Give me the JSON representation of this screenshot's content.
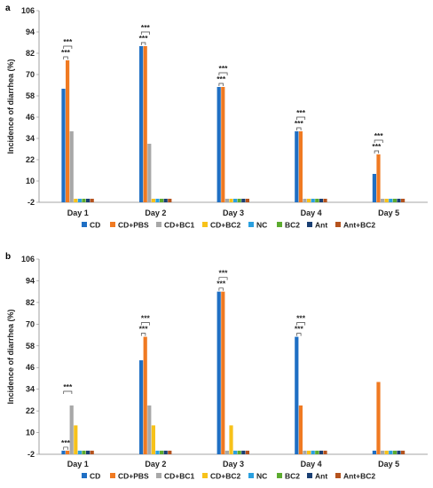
{
  "figure": {
    "background": "#ffffff"
  },
  "series_colors": {
    "CD": "#1f6fc4",
    "CD+PBS": "#f07a22",
    "CD+BC1": "#a8a8a8",
    "CD+BC2": "#f7c21a",
    "NC": "#2aa0e0",
    "BC2": "#5cab2f",
    "Ant": "#1a3f73",
    "Ant+BC2": "#b5531e"
  },
  "chart_data": [
    {
      "panel_label": "a",
      "type": "bar",
      "ylabel": "Incidence of diarrhea (%)",
      "ylim": [
        -2,
        106
      ],
      "yticks": [
        -2,
        10,
        22,
        34,
        46,
        58,
        70,
        82,
        94,
        106
      ],
      "categories": [
        "Day 1",
        "Day 2",
        "Day 3",
        "Day 4",
        "Day 5"
      ],
      "legend_position": "bottom",
      "series": [
        {
          "name": "CD",
          "values": [
            62,
            86,
            63,
            38,
            14
          ]
        },
        {
          "name": "CD+PBS",
          "values": [
            78,
            86,
            63,
            38,
            25
          ]
        },
        {
          "name": "CD+BC1",
          "values": [
            38,
            31,
            0,
            0,
            0
          ]
        },
        {
          "name": "CD+BC2",
          "values": [
            0,
            0,
            0,
            0,
            0
          ]
        },
        {
          "name": "NC",
          "values": [
            0,
            0,
            0,
            0,
            0
          ]
        },
        {
          "name": "BC2",
          "values": [
            0,
            0,
            0,
            0,
            0
          ]
        },
        {
          "name": "Ant",
          "values": [
            0,
            0,
            0,
            0,
            0
          ]
        },
        {
          "name": "Ant+BC2",
          "values": [
            0,
            0,
            0,
            0,
            0
          ]
        }
      ],
      "annotations": [
        {
          "text": "***",
          "category": "Day 1",
          "from": "CD",
          "to": "CD+PBS",
          "level": 1
        },
        {
          "text": "***",
          "category": "Day 1",
          "from": "CD",
          "to": "CD+BC1",
          "level": 2
        },
        {
          "text": "***",
          "category": "Day 2",
          "from": "CD",
          "to": "CD+PBS",
          "level": 1
        },
        {
          "text": "***",
          "category": "Day 2",
          "from": "CD",
          "to": "CD+BC1",
          "level": 2
        },
        {
          "text": "***",
          "category": "Day 3",
          "from": "CD",
          "to": "CD+PBS",
          "level": 1
        },
        {
          "text": "***",
          "category": "Day 3",
          "from": "CD",
          "to": "CD+BC1",
          "level": 2
        },
        {
          "text": "***",
          "category": "Day 4",
          "from": "CD",
          "to": "CD+PBS",
          "level": 1
        },
        {
          "text": "***",
          "category": "Day 4",
          "from": "CD",
          "to": "CD+BC1",
          "level": 2
        },
        {
          "text": "***",
          "category": "Day 5",
          "from": "CD",
          "to": "CD+PBS",
          "level": 1
        },
        {
          "text": "***",
          "category": "Day 5",
          "from": "CD",
          "to": "CD+BC1",
          "level": 2
        }
      ]
    },
    {
      "panel_label": "b",
      "type": "bar",
      "ylabel": "Incidence of diarrhea (%)",
      "ylim": [
        -2,
        106
      ],
      "yticks": [
        -2,
        10,
        22,
        34,
        46,
        58,
        70,
        82,
        94,
        106
      ],
      "categories": [
        "Day 1",
        "Day 2",
        "Day 3",
        "Day 4",
        "Day 5"
      ],
      "legend_position": "bottom",
      "series": [
        {
          "name": "CD",
          "values": [
            0,
            50,
            88,
            63,
            0
          ]
        },
        {
          "name": "CD+PBS",
          "values": [
            0,
            63,
            88,
            25,
            38
          ]
        },
        {
          "name": "CD+BC1",
          "values": [
            25,
            25,
            0,
            0,
            0
          ]
        },
        {
          "name": "CD+BC2",
          "values": [
            14,
            14,
            14,
            0,
            0
          ]
        },
        {
          "name": "NC",
          "values": [
            0,
            0,
            0,
            0,
            0
          ]
        },
        {
          "name": "BC2",
          "values": [
            0,
            0,
            0,
            0,
            0
          ]
        },
        {
          "name": "Ant",
          "values": [
            0,
            0,
            0,
            0,
            0
          ]
        },
        {
          "name": "Ant+BC2",
          "values": [
            0,
            0,
            0,
            0,
            0
          ]
        }
      ],
      "annotations": [
        {
          "text": "***",
          "category": "Day 1",
          "from": "CD",
          "to": "CD+PBS",
          "level": 1
        },
        {
          "text": "***",
          "category": "Day 1",
          "from": "CD",
          "to": "CD+BC1",
          "level": 2
        },
        {
          "text": "***",
          "category": "Day 2",
          "from": "CD",
          "to": "CD+PBS",
          "level": 1
        },
        {
          "text": "***",
          "category": "Day 2",
          "from": "CD",
          "to": "CD+BC1",
          "level": 2
        },
        {
          "text": "***",
          "category": "Day 3",
          "from": "CD",
          "to": "CD+PBS",
          "level": 1
        },
        {
          "text": "***",
          "category": "Day 3",
          "from": "CD",
          "to": "CD+BC1",
          "level": 2
        },
        {
          "text": "***",
          "category": "Day 4",
          "from": "CD",
          "to": "CD+PBS",
          "level": 1
        },
        {
          "text": "***",
          "category": "Day 4",
          "from": "CD",
          "to": "CD+BC1",
          "level": 2
        }
      ]
    }
  ]
}
